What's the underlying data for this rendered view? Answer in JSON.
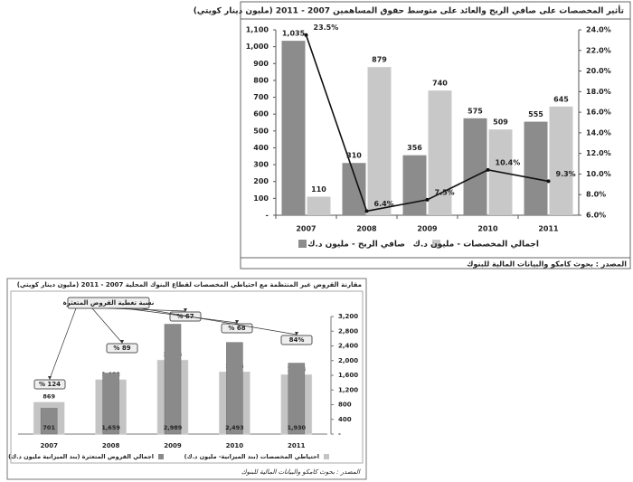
{
  "chart_data": [
    {
      "type": "bar",
      "title": "تأثير المخصصات على صافي الربح والعائد على متوسط حقوق المساهمين 2007 - 2011 (مليون دينار كويتي)",
      "categories": [
        "2007",
        "2008",
        "2009",
        "2010",
        "2011"
      ],
      "series": [
        {
          "name": "صافي الربح - مليون د.ك",
          "color": "#8c8c8c",
          "values": [
            1035,
            310,
            356,
            575,
            555
          ],
          "value_labels": [
            "1,035",
            "310",
            "356",
            "575",
            "555"
          ]
        },
        {
          "name": "اجمالي المخصصات - مليون د.ك",
          "color": "#c8c8c8",
          "values": [
            110,
            879,
            740,
            509,
            645
          ]
        },
        {
          "type": "line",
          "axis": "y2",
          "color": "#111111",
          "values": [
            23.5,
            6.4,
            7.5,
            10.4,
            9.3
          ],
          "value_labels": [
            "23.5%",
            "6.4%",
            "7.5%",
            "10.4%",
            "9.3%"
          ]
        }
      ],
      "ylim": [
        0,
        1100
      ],
      "yticks": [
        {
          "value": 0,
          "label": "-"
        },
        100,
        200,
        300,
        400,
        500,
        600,
        700,
        800,
        900,
        {
          "value": 1000,
          "label": "1,000"
        },
        {
          "value": 1100,
          "label": "1,100"
        }
      ],
      "y2lim": [
        6,
        24
      ],
      "y2ticks": [
        {
          "value": 6,
          "label": "6.0%"
        },
        {
          "value": 8,
          "label": "8.0%"
        },
        {
          "value": 10,
          "label": "10.0%"
        },
        {
          "value": 12,
          "label": "12.0%"
        },
        {
          "value": 14,
          "label": "14.0%"
        },
        {
          "value": 16,
          "label": "16.0%"
        },
        {
          "value": 18,
          "label": "18.0%"
        },
        {
          "value": 20,
          "label": "20.0%"
        },
        {
          "value": 22,
          "label": "22.0%"
        },
        {
          "value": 24,
          "label": "24.0%"
        }
      ],
      "source": "المصدر : بحوث كامكو والبيانات المالية للبنوك"
    },
    {
      "type": "bar",
      "title": "مقارنة القروض غير المنتظمة مع احتياطي المخصصات لقطاع البنوك المحلية 2007 - 2011 (مليون دينار كويتي)",
      "categories": [
        "2007",
        "2008",
        "2009",
        "2010",
        "2011"
      ],
      "series": [
        {
          "name": "احتياطي المخصصات (بند الميزانية- مليون د.ك)",
          "color": "#c4c4c4",
          "values": [
            869,
            1482,
            2015,
            1695,
            1618
          ],
          "value_labels": [
            "869",
            "1,482",
            "2,015",
            "1,695",
            "1,618"
          ]
        },
        {
          "name": "اجمالي القروض المتعثرة (بند الميزانية مليون د.ك)",
          "color": "#8a8a8a",
          "values": [
            701,
            1659,
            2989,
            2493,
            1930
          ],
          "value_labels": [
            "701",
            "1,659",
            "2,989",
            "2,493",
            "1,930"
          ]
        },
        {
          "type": "annotation",
          "name": "نسبة تغطية القروض المتعثرة",
          "values": [
            124,
            89,
            67,
            68,
            84
          ],
          "value_labels": [
            "% 124",
            "% 89",
            "% 67",
            "% 68",
            "84%"
          ]
        }
      ],
      "ylim": [
        0,
        3200
      ],
      "yticks": [
        {
          "value": 0,
          "label": "-"
        },
        400,
        800,
        {
          "value": 1200,
          "label": "1,200"
        },
        {
          "value": 1600,
          "label": "1,600"
        },
        {
          "value": 2000,
          "label": "2,000"
        },
        {
          "value": 2400,
          "label": "2,400"
        },
        {
          "value": 2800,
          "label": "2,800"
        },
        {
          "value": 3200,
          "label": "3,200"
        }
      ],
      "source": "المصدر : بحوث كامكو والبيانات المالية للبنوك"
    }
  ]
}
